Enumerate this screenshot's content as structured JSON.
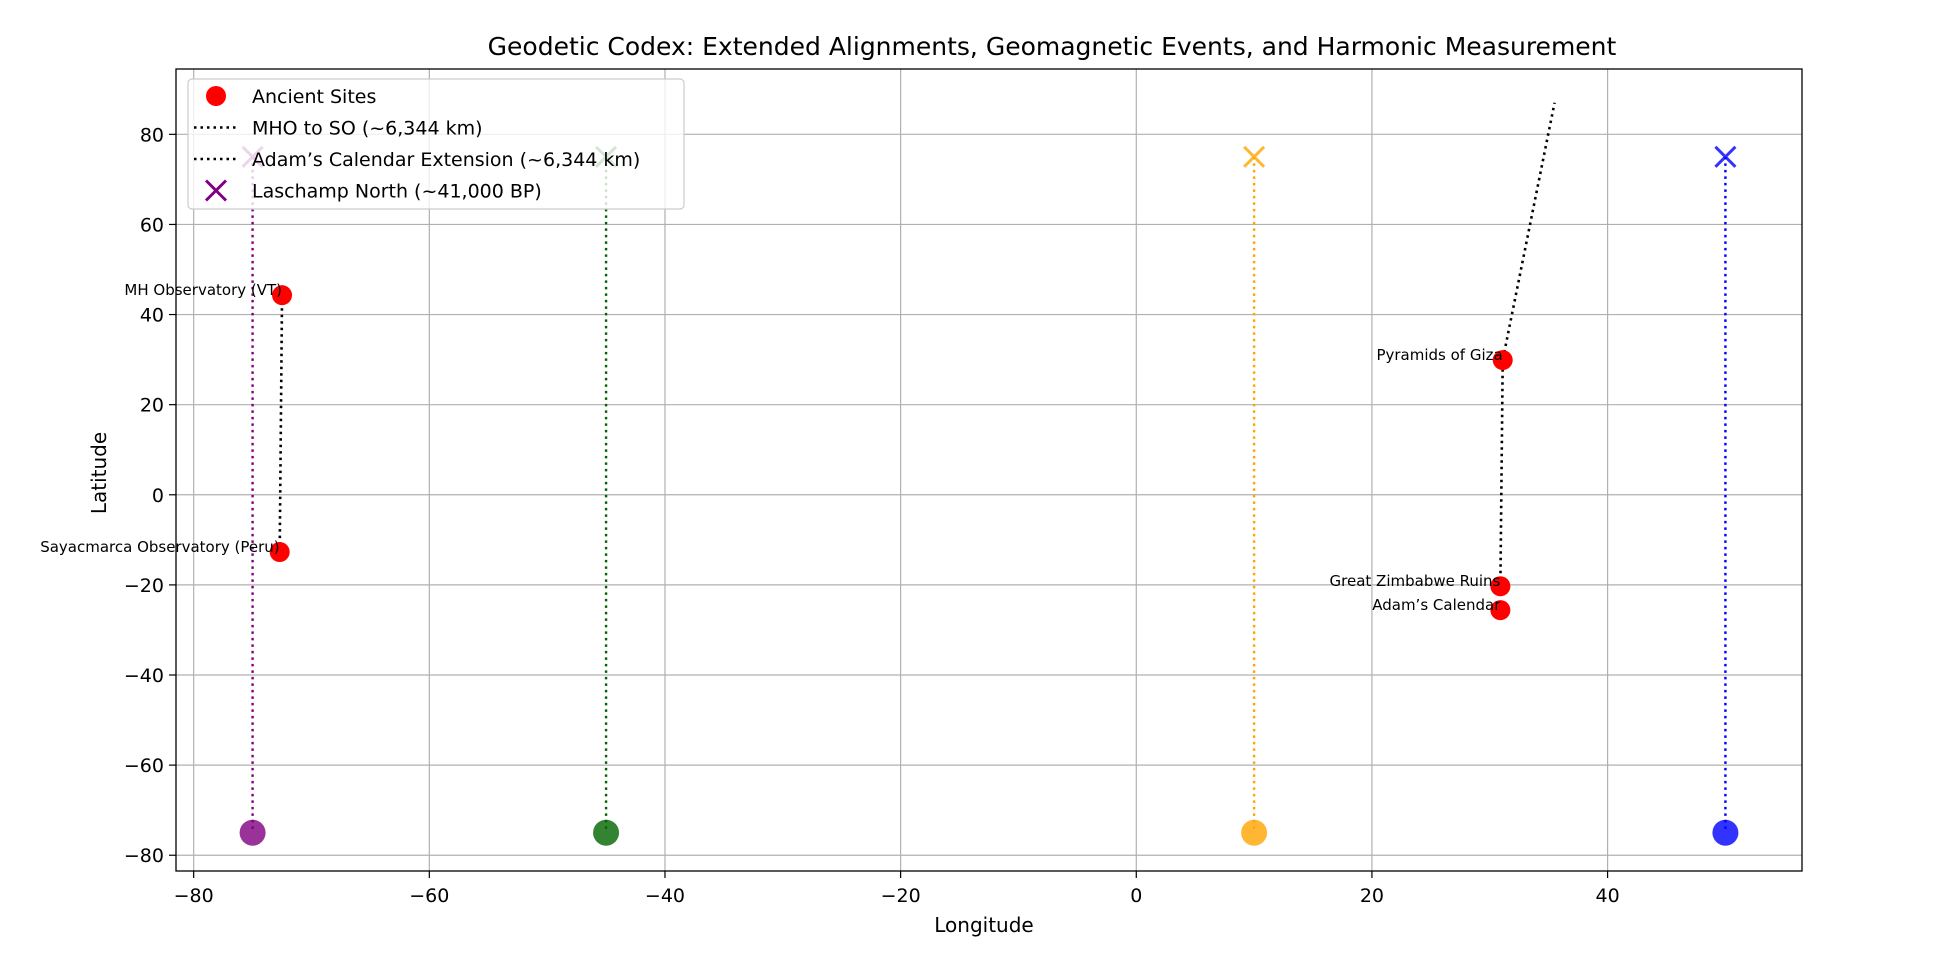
{
  "chart_data": {
    "type": "scatter",
    "title": "Geodetic Codex: Extended Alignments, Geomagnetic Events, and Harmonic Measurement",
    "xlabel": "Longitude",
    "ylabel": "Latitude",
    "xlim": [
      -81.5,
      56.5
    ],
    "ylim": [
      -83.5,
      94.5
    ],
    "xticks": [
      -80,
      -60,
      -40,
      -20,
      0,
      20,
      40
    ],
    "yticks": [
      -80,
      -60,
      -40,
      -20,
      0,
      20,
      40,
      60,
      80
    ],
    "grid": true,
    "legend_position": "upper-left",
    "legend": [
      {
        "label": "Ancient Sites",
        "kind": "dot",
        "color": "#ff0000"
      },
      {
        "label": "MHO to SO (~6,344 km)",
        "kind": "dotted-line",
        "color": "#000000"
      },
      {
        "label": "Adam’s Calendar Extension (~6,344 km)",
        "kind": "dotted-line",
        "color": "#000000"
      },
      {
        "label": "Laschamp North (~41,000 BP)",
        "kind": "x",
        "color": "#800080"
      }
    ],
    "sites": [
      {
        "label": "MH Observatory (VT)",
        "x": -72.5,
        "y": 44.3
      },
      {
        "label": "Sayacmarca Observatory (Peru)",
        "x": -72.7,
        "y": -12.7
      },
      {
        "label": "Pyramids of Giza",
        "x": 31.1,
        "y": 29.9
      },
      {
        "label": "Great Zimbabwe Ruins",
        "x": 30.9,
        "y": -20.3
      },
      {
        "label": "Adam’s Calendar",
        "x": 30.9,
        "y": -25.6
      }
    ],
    "alignment_lines": [
      {
        "name": "MHO to SO (~6,344 km)",
        "color": "#000000",
        "points": [
          [
            -72.5,
            44.3
          ],
          [
            -72.7,
            -12.7
          ]
        ]
      },
      {
        "name": "Adam’s Calendar Extension (~6,344 km)",
        "color": "#000000",
        "points": [
          [
            30.9,
            -20.3
          ],
          [
            31.1,
            29.9
          ],
          [
            35.5,
            87.0
          ]
        ]
      }
    ],
    "geomagnetic_events": [
      {
        "name": "Laschamp North (~41,000 BP)",
        "color": "#800080",
        "x": -75,
        "north": 75,
        "south": -75
      },
      {
        "color": "#006400",
        "x": -45,
        "north": 75,
        "south": -75
      },
      {
        "color": "#ffa500",
        "x": 10,
        "north": 75,
        "south": -75
      },
      {
        "color": "#0000ff",
        "x": 50,
        "north": 75,
        "south": -75
      }
    ]
  }
}
